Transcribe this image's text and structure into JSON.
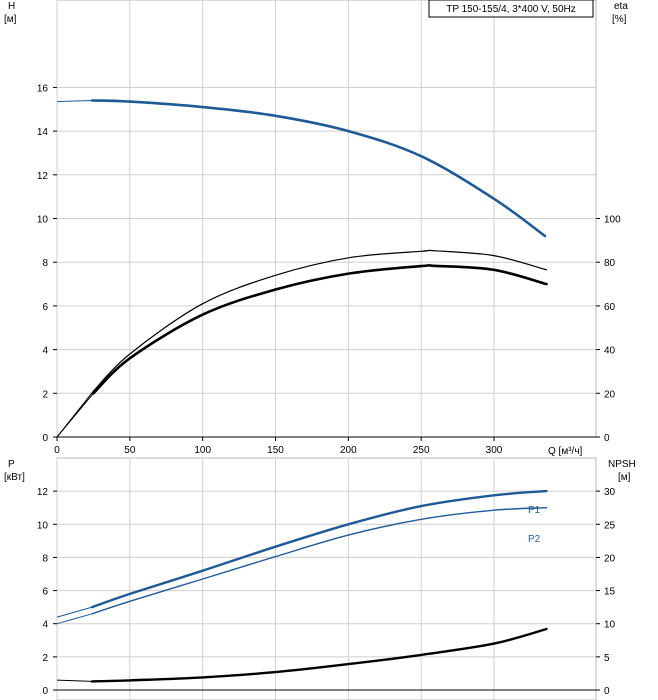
{
  "chart_data": [
    {
      "type": "line",
      "title": "TP 150-155/4, 3*400 V, 50Hz",
      "xlabel": "Q [м³/ч]",
      "ylabel_left_name": "H",
      "ylabel_left_unit": "[м]",
      "ylabel_right_name": "eta",
      "ylabel_right_unit": "[%]",
      "xlim": [
        0,
        370
      ],
      "ylim_left": [
        0,
        20
      ],
      "ylim_right": [
        0,
        200
      ],
      "x_ticks": [
        0,
        50,
        100,
        150,
        200,
        250,
        300
      ],
      "y_ticks_left": [
        0,
        2,
        4,
        6,
        8,
        10,
        12,
        14,
        16
      ],
      "y_ticks_right": [
        0,
        20,
        40,
        60,
        80,
        100
      ],
      "grid": true,
      "series": [
        {
          "axis": "left",
          "color": "#1f5a96",
          "points": [
            [
              0,
              15.35
            ],
            [
              24,
              15.4
            ],
            [
              50,
              15.35
            ],
            [
              100,
              15.1
            ],
            [
              150,
              14.7
            ],
            [
              200,
              14.0
            ],
            [
              250,
              12.85
            ],
            [
              300,
              10.9
            ],
            [
              335,
              9.2
            ]
          ]
        },
        {
          "axis": "right",
          "color": "#000000",
          "points": [
            [
              0,
              0
            ],
            [
              25,
              21
            ],
            [
              50,
              38
            ],
            [
              100,
              61
            ],
            [
              150,
              74
            ],
            [
              200,
              82
            ],
            [
              250,
              85
            ],
            [
              260,
              85.2
            ],
            [
              300,
              83
            ],
            [
              336,
              76.5
            ]
          ]
        },
        {
          "axis": "right",
          "color": "#000000",
          "points": [
            [
              0,
              0
            ],
            [
              25,
              20
            ],
            [
              50,
              36
            ],
            [
              100,
              56
            ],
            [
              150,
              67.5
            ],
            [
              200,
              74.8
            ],
            [
              250,
              78.2
            ],
            [
              260,
              78.3
            ],
            [
              300,
              76.5
            ],
            [
              336,
              70
            ]
          ]
        }
      ]
    },
    {
      "type": "line",
      "xlabel": "",
      "ylabel_left_name": "P",
      "ylabel_left_unit": "[кВт]",
      "ylabel_right_name": "NPSH",
      "ylabel_right_unit": "[м]",
      "xlim": [
        0,
        370
      ],
      "ylim_left": [
        0,
        14
      ],
      "ylim_right": [
        0,
        35
      ],
      "y_ticks_left": [
        0,
        2,
        4,
        6,
        8,
        10,
        12
      ],
      "y_ticks_right": [
        0,
        5,
        10,
        15,
        20,
        25,
        30
      ],
      "grid": true,
      "series": [
        {
          "name": "P1",
          "axis": "left",
          "color": "#1f5a96",
          "points": [
            [
              0,
              4.4
            ],
            [
              24,
              5.0
            ],
            [
              50,
              5.8
            ],
            [
              100,
              7.2
            ],
            [
              150,
              8.65
            ],
            [
              200,
              10.0
            ],
            [
              250,
              11.1
            ],
            [
              300,
              11.75
            ],
            [
              336,
              12.0
            ]
          ]
        },
        {
          "name": "P2",
          "axis": "left",
          "color": "#1f5a96",
          "points": [
            [
              0,
              4.0
            ],
            [
              24,
              4.6
            ],
            [
              50,
              5.35
            ],
            [
              100,
              6.7
            ],
            [
              150,
              8.05
            ],
            [
              200,
              9.35
            ],
            [
              250,
              10.3
            ],
            [
              300,
              10.85
            ],
            [
              336,
              11.0
            ]
          ]
        },
        {
          "name": "NPSH",
          "axis": "right",
          "color": "#000000",
          "points": [
            [
              0,
              1.5
            ],
            [
              24,
              1.3
            ],
            [
              50,
              1.45
            ],
            [
              100,
              1.9
            ],
            [
              150,
              2.7
            ],
            [
              200,
              3.9
            ],
            [
              250,
              5.3
            ],
            [
              300,
              7.0
            ],
            [
              336,
              9.2
            ]
          ]
        }
      ]
    }
  ]
}
